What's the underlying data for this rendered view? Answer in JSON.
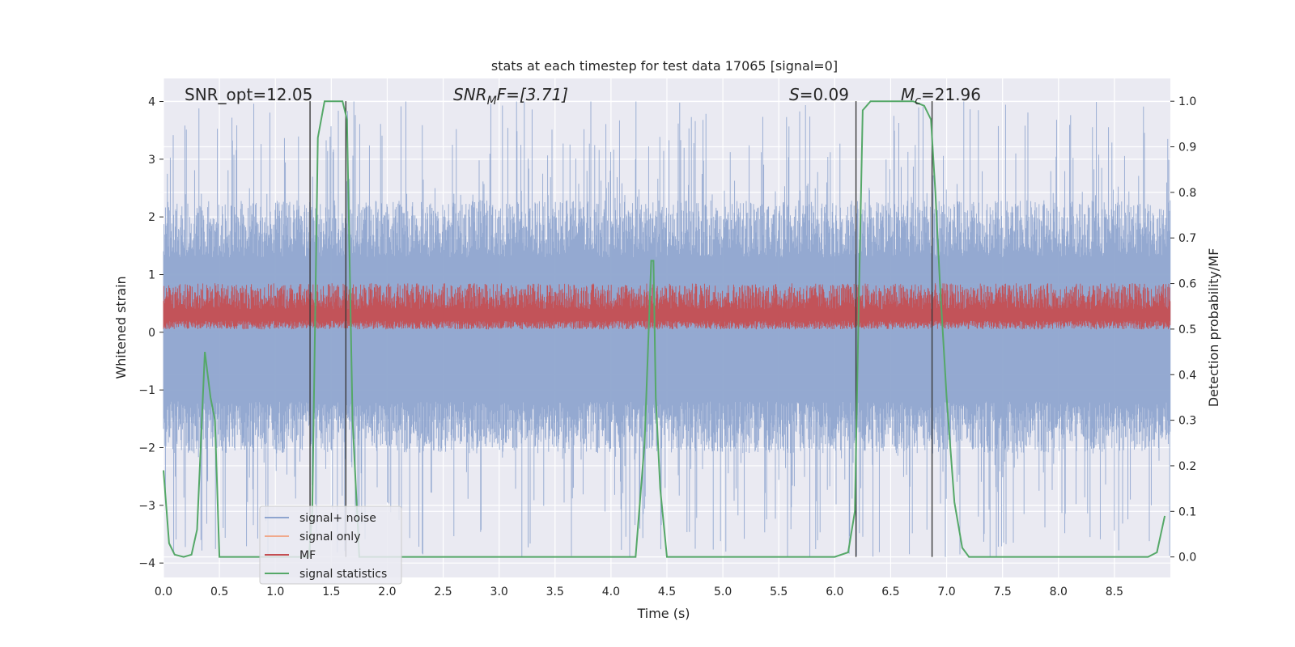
{
  "chart_data": {
    "type": "line",
    "title": "stats at each timestep for test data 17065 [signal=0]",
    "xlabel": "Time (s)",
    "ylabel": "Whitened strain",
    "y2label": "Detection probability/MF",
    "xlim": [
      0.0,
      9.0
    ],
    "ylim": [
      -4.25,
      4.4
    ],
    "y2lim": [
      -0.045,
      1.05
    ],
    "x_ticks": [
      "0.0",
      "0.5",
      "1.0",
      "1.5",
      "2.0",
      "2.5",
      "3.0",
      "3.5",
      "4.0",
      "4.5",
      "5.0",
      "5.5",
      "6.0",
      "6.5",
      "7.0",
      "7.5",
      "8.0",
      "8.5"
    ],
    "y_ticks": [
      "4",
      "3",
      "2",
      "1",
      "0",
      "−1",
      "−2",
      "−3",
      "−4"
    ],
    "y2_ticks": [
      "1.0",
      "0.9",
      "0.8",
      "0.7",
      "0.6",
      "0.5",
      "0.4",
      "0.3",
      "0.2",
      "0.1",
      "0.0"
    ],
    "annotations": {
      "snr_opt": "SNR_opt=12.05",
      "snr_mf": "SNR",
      "snr_mf_sub": "M",
      "snr_mf_rest": "F=[3.71]",
      "s_val": "S",
      "s_rest": "=0.09",
      "mc": "M",
      "mc_sub": "c",
      "mc_rest": "=21.96"
    },
    "vertical_lines": [
      1.31,
      1.63,
      6.19,
      6.87
    ],
    "series": [
      {
        "name": "signal+ noise",
        "color": "#8fa5cf",
        "axis": "left",
        "style": "noise",
        "envelope_max": 4.0,
        "envelope_min": -3.9
      },
      {
        "name": "signal only",
        "color": "#f0a98c",
        "axis": "left",
        "values": []
      },
      {
        "name": "MF",
        "color": "#c44e52",
        "axis": "left",
        "style": "noise",
        "band": [
          0.05,
          0.85
        ]
      },
      {
        "name": "signal statistics",
        "color": "#55a868",
        "axis": "right",
        "x": [
          0.0,
          0.05,
          0.1,
          0.18,
          0.25,
          0.3,
          0.37,
          0.42,
          0.46,
          0.5,
          0.55,
          0.65,
          0.8,
          1.0,
          1.2,
          1.3,
          1.33,
          1.38,
          1.44,
          1.52,
          1.6,
          1.64,
          1.69,
          1.75,
          1.8,
          2.0,
          3.0,
          4.0,
          4.22,
          4.3,
          4.36,
          4.38,
          4.4,
          4.44,
          4.5,
          4.6,
          5.0,
          5.5,
          6.0,
          6.12,
          6.18,
          6.21,
          6.25,
          6.32,
          6.5,
          6.7,
          6.8,
          6.86,
          6.9,
          6.94,
          7.0,
          7.07,
          7.14,
          7.2,
          7.3,
          7.6,
          8.0,
          8.5,
          8.8,
          8.88,
          8.95
        ],
        "values": [
          0.19,
          0.03,
          0.005,
          0.0,
          0.005,
          0.06,
          0.45,
          0.35,
          0.3,
          0.0,
          0.0,
          0.0,
          0.0,
          0.0,
          0.0,
          0.0,
          0.1,
          0.92,
          1.0,
          1.0,
          1.0,
          0.96,
          0.3,
          0.0,
          0.0,
          0.0,
          0.0,
          0.0,
          0.0,
          0.25,
          0.65,
          0.65,
          0.35,
          0.15,
          0.0,
          0.0,
          0.0,
          0.0,
          0.0,
          0.01,
          0.1,
          0.5,
          0.98,
          1.0,
          1.0,
          1.0,
          0.99,
          0.96,
          0.8,
          0.6,
          0.35,
          0.12,
          0.02,
          0.0,
          0.0,
          0.0,
          0.0,
          0.0,
          0.0,
          0.01,
          0.09
        ]
      }
    ],
    "legend": [
      "signal+ noise",
      "signal only",
      "MF",
      "signal statistics"
    ],
    "grid": true
  }
}
